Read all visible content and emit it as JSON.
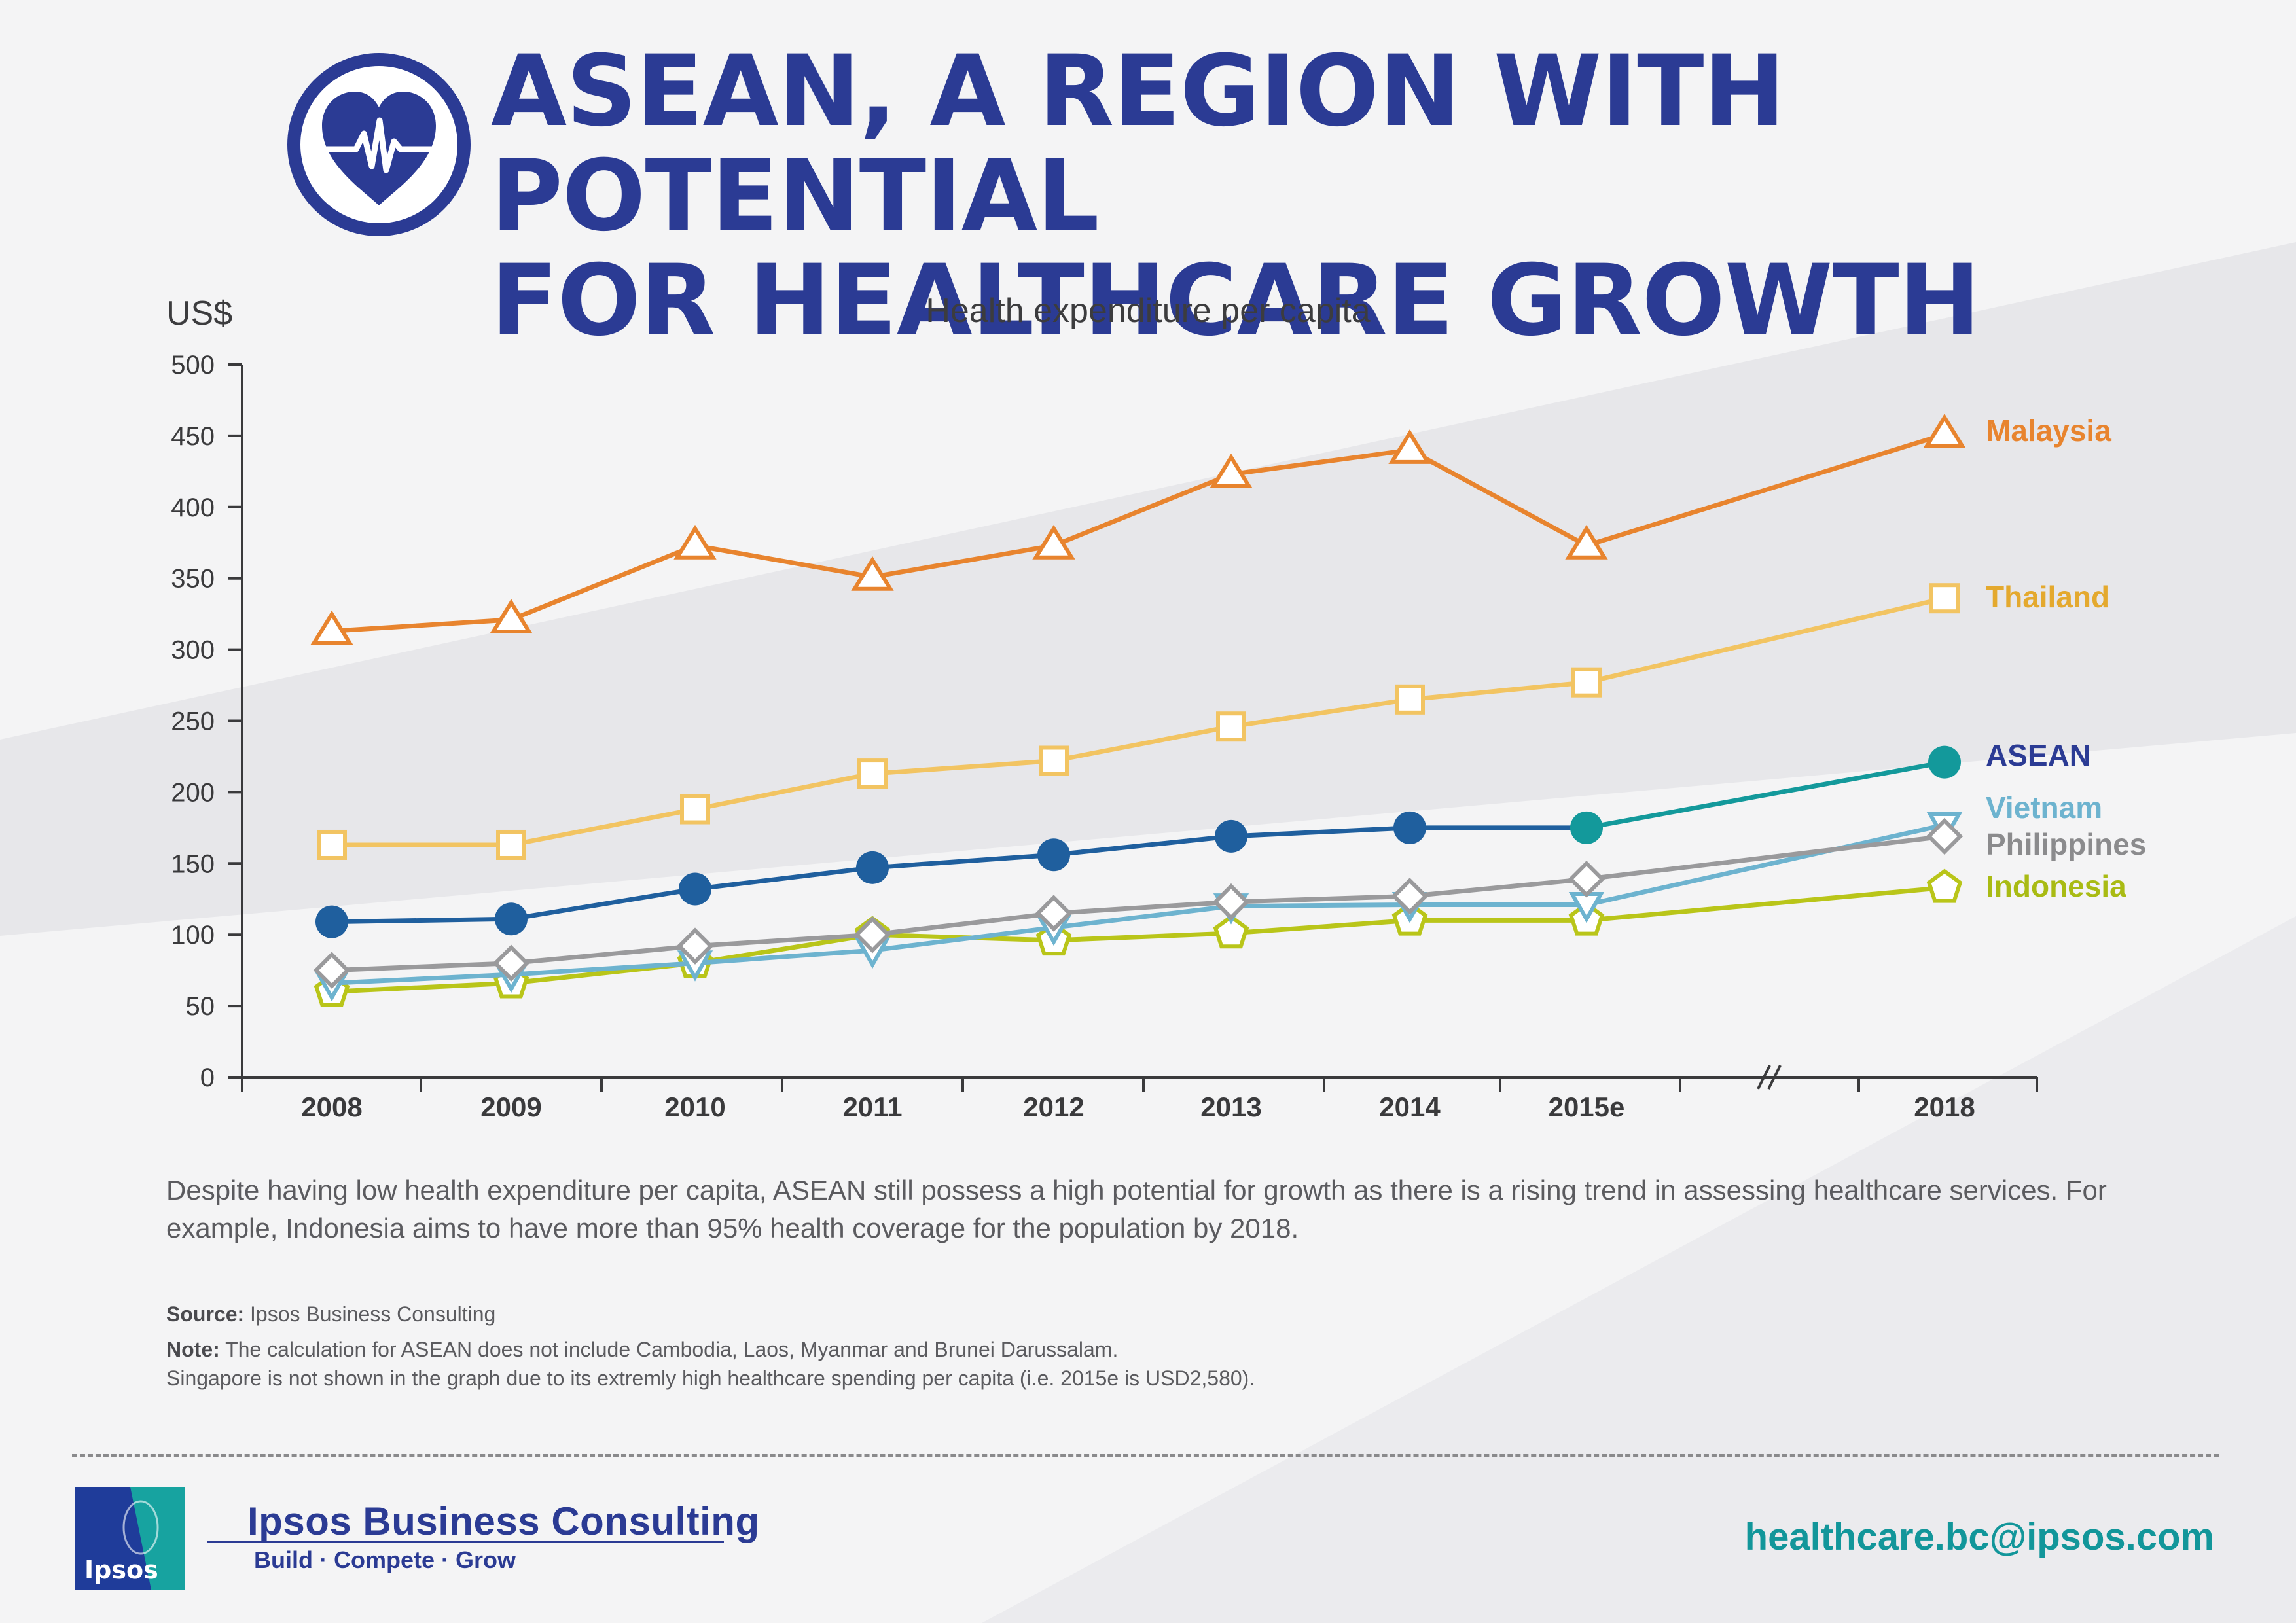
{
  "header": {
    "title_line1": "ASEAN, A REGION WITH POTENTIAL",
    "title_line2": "FOR HEALTHCARE GROWTH",
    "icon": "heart-pulse-icon"
  },
  "chart_data": {
    "type": "line",
    "title": "Health expenditure per capita",
    "ylabel": "US$",
    "xlabel": "",
    "ylim": [
      0,
      500
    ],
    "yticks": [
      0,
      50,
      100,
      150,
      200,
      250,
      300,
      350,
      400,
      450,
      500
    ],
    "categories": [
      "2008",
      "2009",
      "2010",
      "2011",
      "2012",
      "2013",
      "2014",
      "2015e",
      "2018"
    ],
    "axis_break_between": [
      "2015e",
      "2018"
    ],
    "grid": false,
    "legend": "labels at right end of each line",
    "series": [
      {
        "name": "Malaysia",
        "color": "#e8842e",
        "marker": "triangle",
        "values": [
          313,
          321,
          373,
          351,
          373,
          423,
          440,
          373,
          451
        ]
      },
      {
        "name": "Thailand",
        "color": "#f2c462",
        "label_color": "#e4a92e",
        "marker": "square",
        "values": [
          163,
          163,
          188,
          213,
          222,
          246,
          265,
          277,
          336
        ]
      },
      {
        "name": "ASEAN",
        "color": "#1f5f9e",
        "color_end": "#13999b",
        "label_color": "#2b3b94",
        "marker": "circle",
        "values": [
          109,
          111,
          132,
          147,
          156,
          169,
          175,
          175,
          221
        ]
      },
      {
        "name": "Vietnam",
        "color": "#6db3cf",
        "marker": "triangle-down",
        "values": [
          66,
          72,
          80,
          89,
          105,
          120,
          121,
          121,
          177
        ]
      },
      {
        "name": "Philippines",
        "color": "#9a9a9c",
        "label_color": "#8b8b8d",
        "marker": "diamond",
        "values": [
          75,
          80,
          92,
          100,
          115,
          123,
          127,
          139,
          169
        ]
      },
      {
        "name": "Indonesia",
        "color": "#b9c519",
        "label_color": "#a9bb14",
        "marker": "pentagon",
        "values": [
          60,
          66,
          80,
          100,
          96,
          101,
          110,
          110,
          133
        ]
      }
    ]
  },
  "description": "Despite having low health expenditure per capita, ASEAN still possess a high potential for growth as there is a rising trend in assessing healthcare services. For example, Indonesia aims to have more than 95% health coverage for the population by 2018.",
  "notes": {
    "source_label": "Source:",
    "source_text": " Ipsos Business Consulting",
    "note_label": "Note:",
    "note_text": " The calculation for ASEAN does not include Cambodia, Laos, Myanmar and Brunei Darussalam.",
    "note_text2": "Singapore is not shown in the graph due to its extremly high healthcare spending per capita (i.e. 2015e is USD2,580)."
  },
  "footer": {
    "logo_text": "Ipsos",
    "company": "Ipsos Business Consulting",
    "tagline": "Build · Compete · Grow",
    "email": "healthcare.bc@ipsos.com"
  }
}
